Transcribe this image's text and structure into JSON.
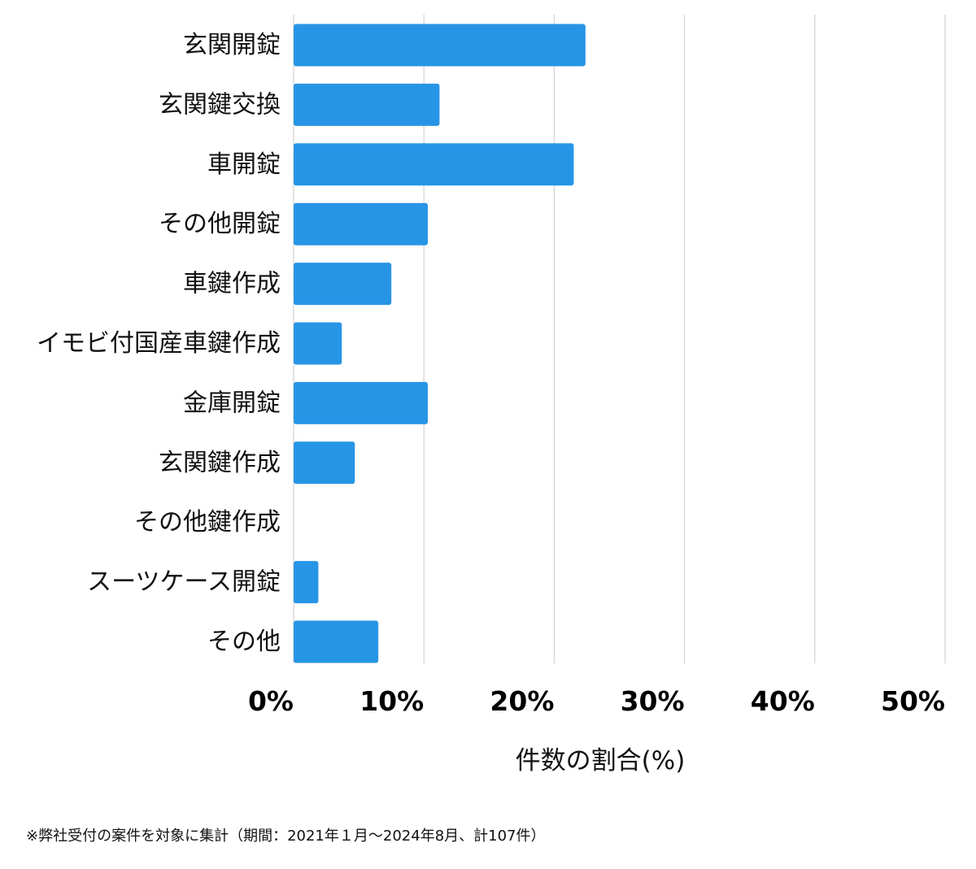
{
  "chart_data": {
    "type": "bar",
    "orientation": "horizontal",
    "categories": [
      "玄関開錠",
      "玄関鍵交換",
      "車開錠",
      "その他開錠",
      "車鍵作成",
      "イモビ付国産車鍵作成",
      "金庫開錠",
      "玄関鍵作成",
      "その他鍵作成",
      "スーツケース開錠",
      "その他"
    ],
    "values": [
      22.4,
      11.2,
      21.5,
      10.3,
      7.5,
      3.7,
      10.3,
      4.7,
      0,
      1.9,
      6.5
    ],
    "xlabel": "件数の割合(%)",
    "ylabel": "",
    "xlim": [
      0,
      50
    ],
    "xticks": [
      0,
      10,
      20,
      30,
      40,
      50
    ],
    "xtick_labels": [
      "0%",
      "10%",
      "20%",
      "30%",
      "40%",
      "50%"
    ],
    "grid": true,
    "bar_color": "#2795e6",
    "grid_color": "#d3d3d3"
  },
  "footnote": "※弊社受付の案件を対象に集計（期間：2021年１月〜2024年8月、計107件）"
}
